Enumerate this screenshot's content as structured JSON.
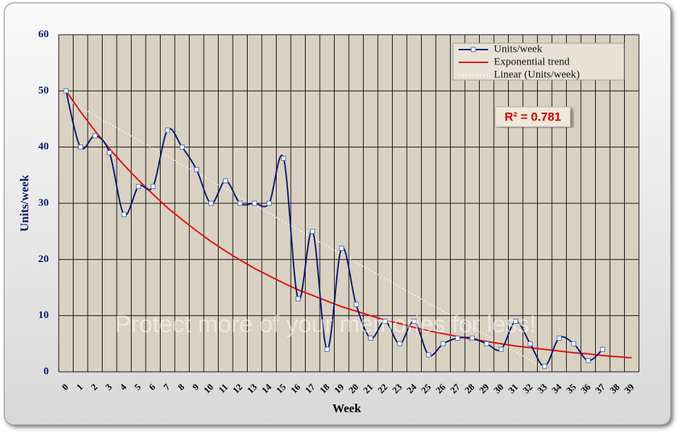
{
  "chart_data": {
    "type": "line",
    "x_label": "Week",
    "y_label": "Units/week",
    "categories": [
      "0",
      "1",
      "2",
      "3",
      "4",
      "5",
      "6",
      "7",
      "8",
      "9",
      "10",
      "11",
      "12",
      "13",
      "14",
      "15",
      "16",
      "17",
      "18",
      "19",
      "20",
      "21",
      "22",
      "23",
      "24",
      "25",
      "26",
      "27",
      "28",
      "29",
      "30",
      "31",
      "32",
      "33",
      "34",
      "35",
      "36",
      "37",
      "38",
      "39"
    ],
    "series": [
      {
        "name": "Units/week",
        "color": "#0a1a6e",
        "style": "smooth-markers",
        "values": [
          50,
          40,
          42,
          39,
          28,
          33,
          33,
          43,
          40,
          36,
          30,
          34,
          30,
          30,
          30,
          38,
          13,
          25,
          4,
          22,
          12,
          6,
          9,
          5,
          9,
          3,
          5,
          6,
          6,
          5,
          4,
          9,
          5,
          1,
          6,
          5,
          2,
          4,
          null,
          null
        ]
      },
      {
        "name": "Exponential trend",
        "color": "#e01010",
        "style": "line",
        "values": [
          50,
          46.3,
          42.9,
          39.7,
          36.8,
          34.1,
          31.6,
          29.2,
          27.1,
          25.1,
          23.2,
          21.5,
          19.9,
          18.4,
          17.1,
          15.8,
          14.6,
          13.6,
          12.6,
          11.6,
          10.8,
          10.0,
          9.2,
          8.6,
          7.9,
          7.3,
          6.8,
          6.3,
          5.8,
          5.4,
          5.0,
          4.6,
          4.3,
          4.0,
          3.7,
          3.4,
          3.2,
          2.9,
          2.7,
          2.5
        ]
      },
      {
        "name": "Linear (Units/week)",
        "color": "#ffffff",
        "style": "dotted",
        "values": [
          48.5,
          47.05,
          45.6,
          44.15,
          42.7,
          41.25,
          39.8,
          38.35,
          36.9,
          35.45,
          34,
          32.55,
          31.1,
          29.65,
          28.2,
          26.75,
          25.3,
          23.85,
          22.4,
          20.95,
          19.5,
          18.05,
          16.6,
          15.15,
          13.7,
          12.25,
          10.8,
          9.35,
          7.9,
          6.45,
          5,
          3.55,
          2.1,
          0.65,
          null,
          null,
          null,
          null,
          null,
          null
        ]
      }
    ],
    "ylim": [
      0,
      60
    ],
    "yticks": [
      0,
      10,
      20,
      30,
      40,
      50,
      60
    ],
    "grid": true,
    "legend": "top-right",
    "annotation": "R² = 0.781",
    "watermark": "Protect more of your memories for less!"
  }
}
